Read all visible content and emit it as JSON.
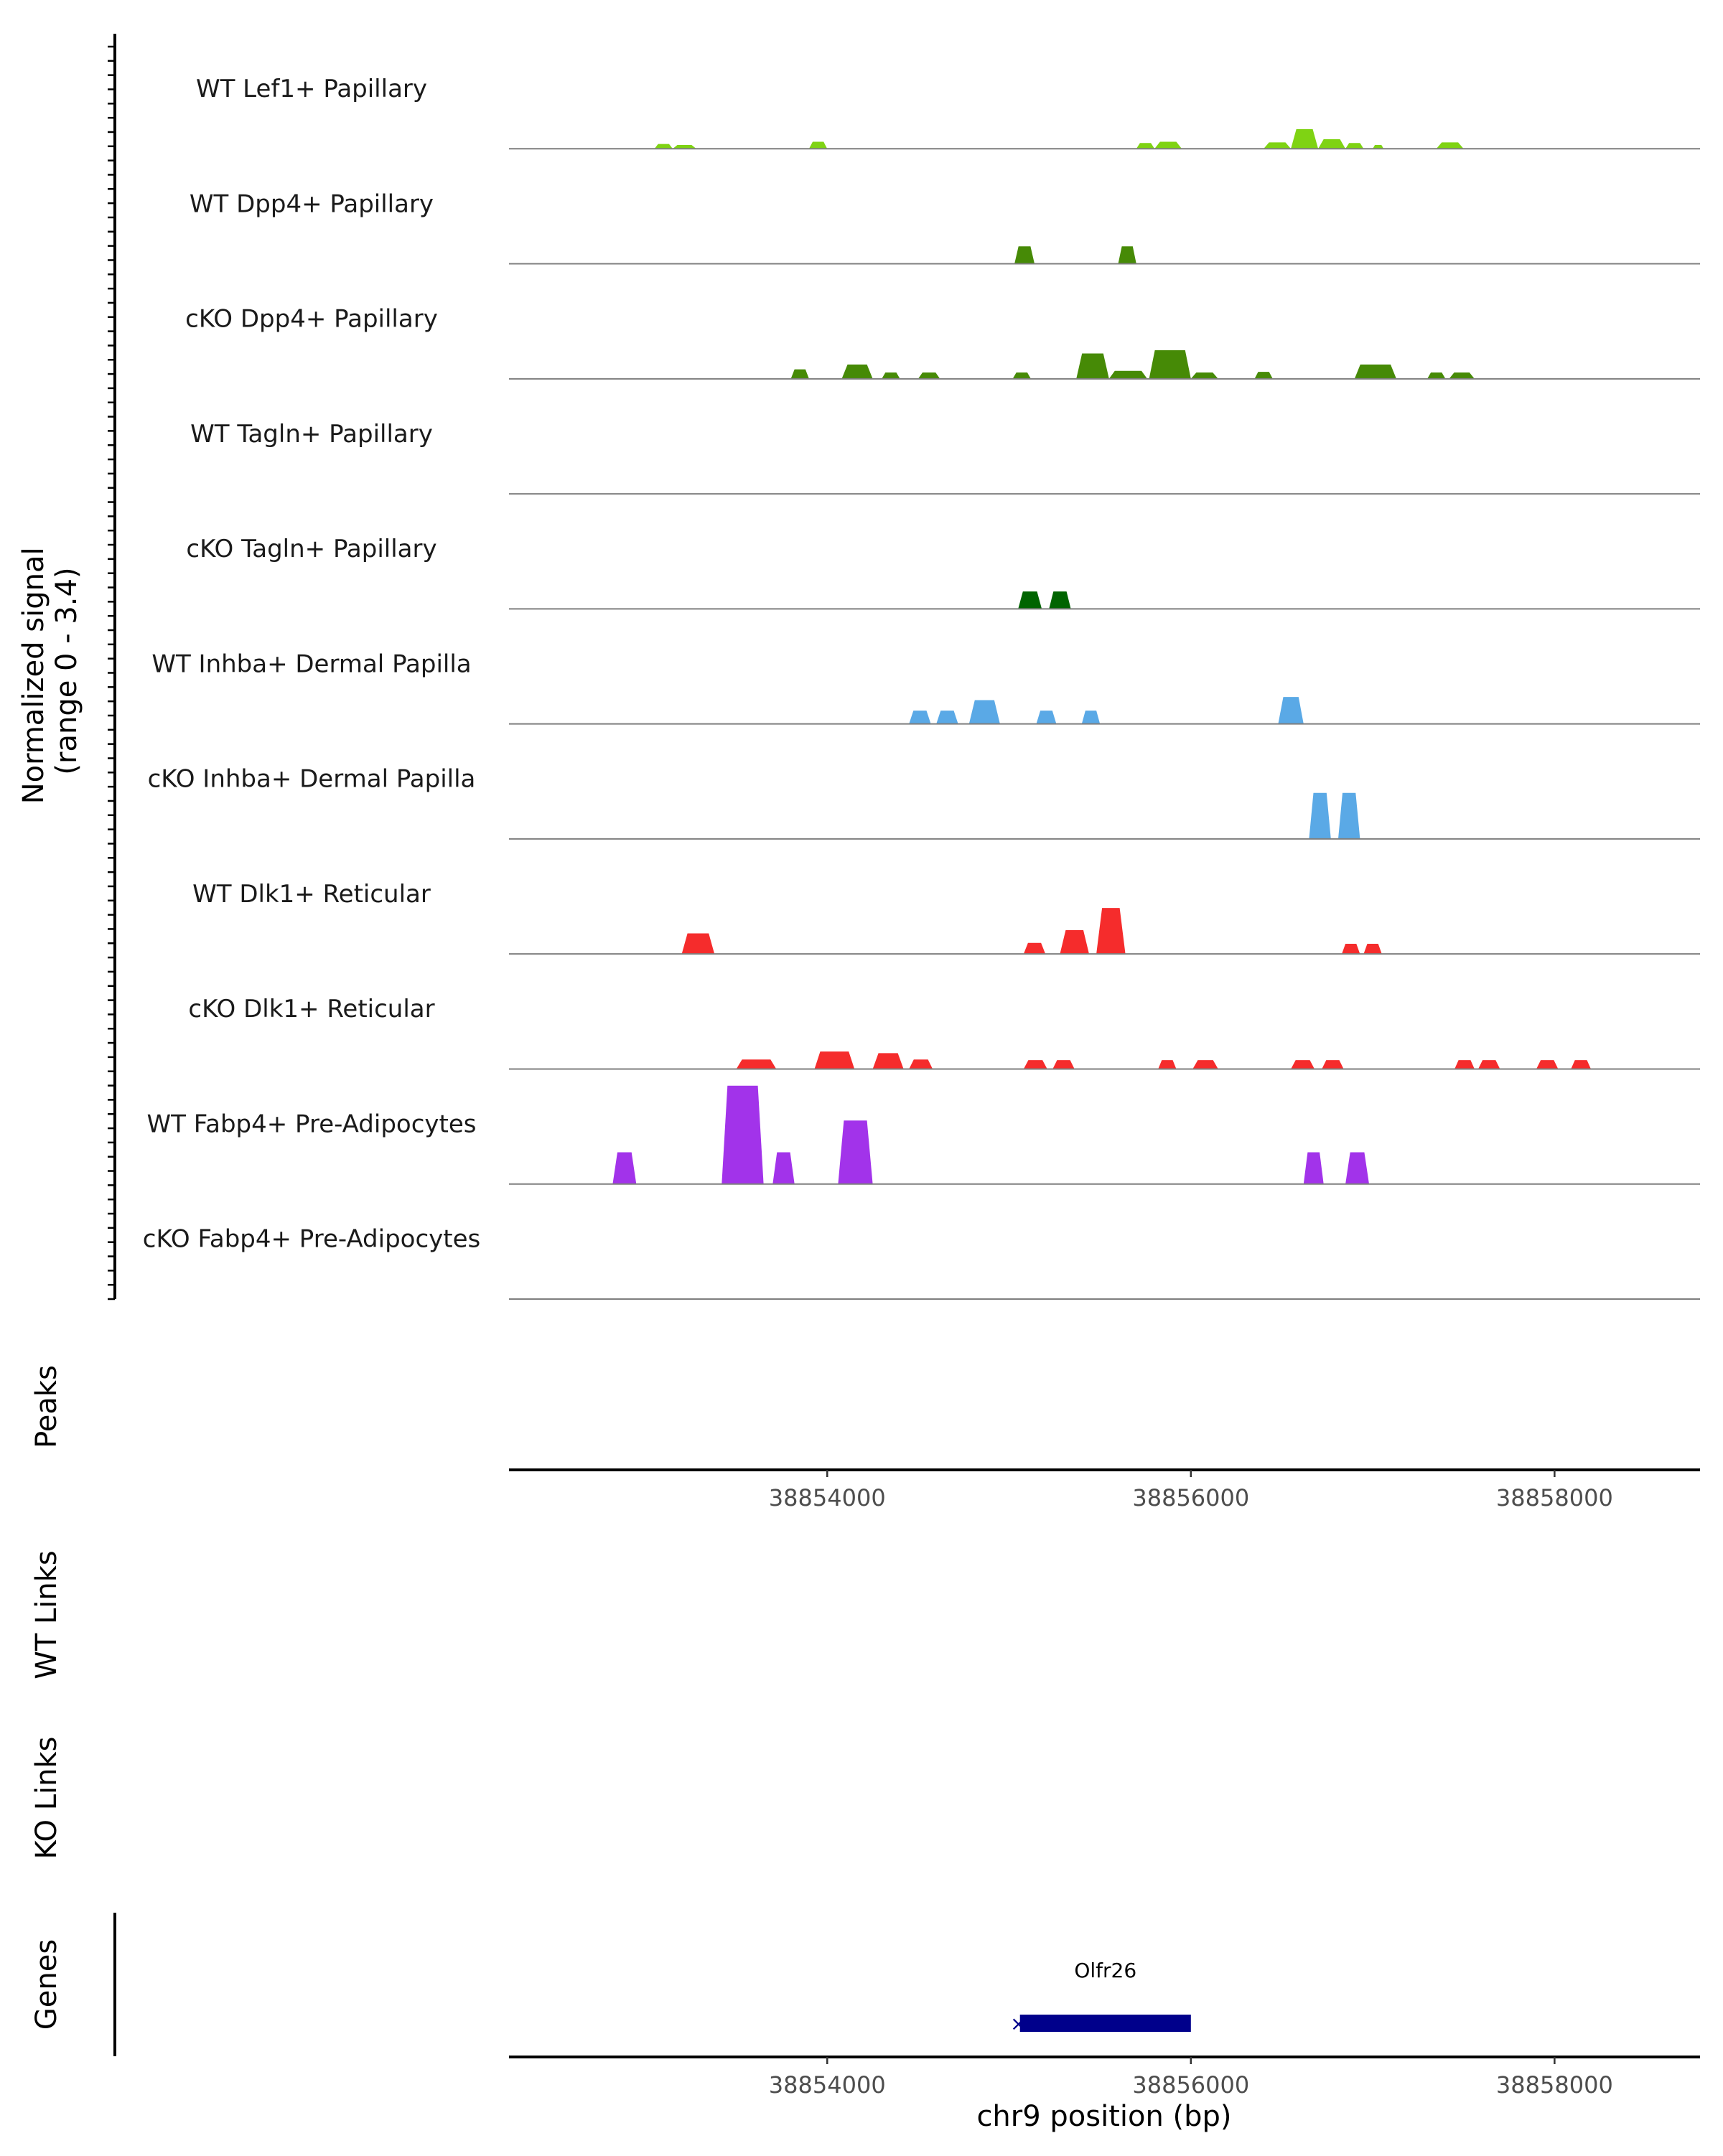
{
  "chart_data": {
    "type": "area",
    "title": "",
    "region": "chr9",
    "xlabel": "chr9 position (bp)",
    "xlim": [
      38852250,
      38858800
    ],
    "xticks": [
      38854000,
      38856000,
      38858000
    ],
    "xtick_labels": [
      "38854000",
      "38856000",
      "38858000"
    ],
    "coverage": {
      "ylabel": "Normalized signal\n(range 0 - 3.4)",
      "ylim": [
        0,
        3.4
      ],
      "tracks": [
        {
          "name": "WT Lef1+ Papillary",
          "color": "#7fd313",
          "peaks": [
            [
              38853050,
              38853150,
              0.15
            ],
            [
              38853150,
              38853280,
              0.12
            ],
            [
              38853900,
              38854000,
              0.22
            ],
            [
              38855700,
              38855800,
              0.18
            ],
            [
              38855800,
              38855950,
              0.22
            ],
            [
              38856400,
              38856550,
              0.2
            ],
            [
              38856550,
              38856700,
              0.62
            ],
            [
              38856700,
              38856850,
              0.3
            ],
            [
              38856850,
              38856950,
              0.18
            ],
            [
              38857000,
              38857060,
              0.12
            ],
            [
              38857350,
              38857500,
              0.2
            ]
          ]
        },
        {
          "name": "WT Dpp4+ Papillary",
          "color": "#468a06",
          "peaks": [
            [
              38855030,
              38855140,
              0.55
            ],
            [
              38855600,
              38855700,
              0.55
            ]
          ]
        },
        {
          "name": "cKO Dpp4+ Papillary",
          "color": "#468a06",
          "peaks": [
            [
              38853800,
              38853900,
              0.3
            ],
            [
              38854080,
              38854250,
              0.45
            ],
            [
              38854300,
              38854400,
              0.2
            ],
            [
              38854500,
              38854620,
              0.2
            ],
            [
              38855020,
              38855120,
              0.2
            ],
            [
              38855370,
              38855550,
              0.8
            ],
            [
              38855550,
              38855760,
              0.25
            ],
            [
              38855770,
              38856000,
              0.9
            ],
            [
              38856000,
              38856150,
              0.2
            ],
            [
              38856350,
              38856450,
              0.22
            ],
            [
              38856900,
              38857130,
              0.45
            ],
            [
              38857300,
              38857400,
              0.2
            ],
            [
              38857420,
              38857560,
              0.2
            ]
          ]
        },
        {
          "name": "WT Tagln+ Papillary",
          "color": "#1f6a00",
          "peaks": []
        },
        {
          "name": "cKO Tagln+ Papillary",
          "color": "#006400",
          "peaks": [
            [
              38855050,
              38855180,
              0.55
            ],
            [
              38855220,
              38855340,
              0.55
            ]
          ]
        },
        {
          "name": "WT Inhba+ Dermal Papilla",
          "color": "#5aa9e6",
          "peaks": [
            [
              38854450,
              38854570,
              0.42
            ],
            [
              38854600,
              38854720,
              0.42
            ],
            [
              38854780,
              38854950,
              0.75
            ],
            [
              38855150,
              38855260,
              0.42
            ],
            [
              38855400,
              38855500,
              0.42
            ],
            [
              38856480,
              38856620,
              0.85
            ]
          ]
        },
        {
          "name": "cKO Inhba+ Dermal Papilla",
          "color": "#5aa9e6",
          "peaks": [
            [
              38856650,
              38856770,
              1.45
            ],
            [
              38856810,
              38856930,
              1.45
            ]
          ]
        },
        {
          "name": "WT Dlk1+ Reticular",
          "color": "#f52c2c",
          "peaks": [
            [
              38853200,
              38853380,
              0.65
            ],
            [
              38855080,
              38855200,
              0.35
            ],
            [
              38855280,
              38855440,
              0.75
            ],
            [
              38855480,
              38855640,
              1.45
            ],
            [
              38856830,
              38856930,
              0.32
            ],
            [
              38856950,
              38857050,
              0.32
            ]
          ]
        },
        {
          "name": "cKO Dlk1+ Reticular",
          "color": "#f52c2c",
          "peaks": [
            [
              38853500,
              38853720,
              0.3
            ],
            [
              38853930,
              38854150,
              0.55
            ],
            [
              38854250,
              38854420,
              0.5
            ],
            [
              38854450,
              38854580,
              0.3
            ],
            [
              38855080,
              38855210,
              0.28
            ],
            [
              38855240,
              38855360,
              0.28
            ],
            [
              38855820,
              38855920,
              0.28
            ],
            [
              38856010,
              38856150,
              0.28
            ],
            [
              38856550,
              38856680,
              0.28
            ],
            [
              38856720,
              38856840,
              0.28
            ],
            [
              38857450,
              38857560,
              0.28
            ],
            [
              38857580,
              38857700,
              0.28
            ],
            [
              38857900,
              38858020,
              0.28
            ],
            [
              38858090,
              38858200,
              0.28
            ]
          ]
        },
        {
          "name": "WT Fabp4+ Pre-Adipocytes",
          "color": "#a233ea",
          "peaks": [
            [
              38852820,
              38852950,
              1.0
            ],
            [
              38853420,
              38853650,
              3.1
            ],
            [
              38853700,
              38853820,
              1.0
            ],
            [
              38854060,
              38854250,
              2.0
            ],
            [
              38856620,
              38856730,
              1.0
            ],
            [
              38856850,
              38856980,
              1.0
            ]
          ]
        },
        {
          "name": "cKO Fabp4+ Pre-Adipocytes",
          "color": "#a233ea",
          "peaks": []
        }
      ]
    },
    "panels": {
      "peaks_label": "Peaks",
      "wt_links_label": "WT Links",
      "ko_links_label": "KO Links",
      "genes_label": "Genes"
    },
    "genes": [
      {
        "name": "Olfr26",
        "start": 38855060,
        "end": 38856000,
        "strand": "-",
        "color": "#00008b"
      }
    ]
  }
}
